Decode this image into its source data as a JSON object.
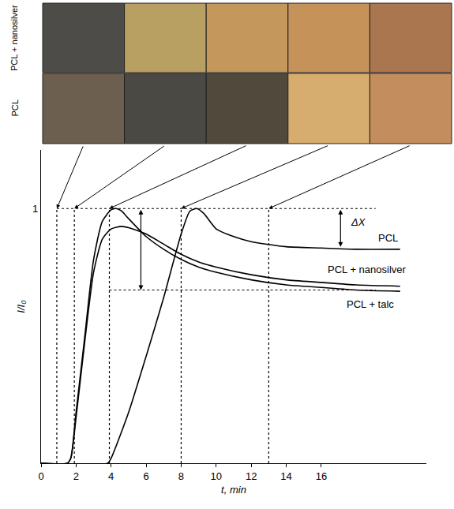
{
  "chart_data": {
    "type": "line",
    "row_labels": [
      "PCL + nanosilver",
      "PCL"
    ],
    "x_label": "t, min",
    "y_label": "I/I₀",
    "xlim": [
      0,
      22
    ],
    "ylim": [
      0,
      1.23
    ],
    "xticks": [
      0,
      2,
      4,
      6,
      8,
      10,
      12,
      14,
      16
    ],
    "yticks": [
      1
    ],
    "grid": false,
    "marked_times": [
      0.9,
      1.9,
      3.9,
      8,
      13
    ],
    "reference_levels": [
      {
        "y": 1,
        "from": 0.9,
        "to": 19.1
      },
      {
        "y": 0.68,
        "from": 3.9,
        "to": 19.1
      }
    ],
    "delta_x": {
      "label": "ΔX",
      "t": 17.1,
      "from": 1,
      "to": 0.85
    },
    "span_arrow": {
      "t": 5.7,
      "from": 1,
      "to": 0.68
    },
    "series": [
      {
        "name": "PCL",
        "color": "#000000",
        "x": [
          0,
          3.8,
          4,
          5,
          6,
          7,
          8,
          8.5,
          8.9,
          9.3,
          10,
          11,
          12,
          14,
          16,
          18,
          20.5
        ],
        "values": [
          0,
          0,
          0.02,
          0.2,
          0.42,
          0.65,
          0.9,
          0.99,
          1.0,
          0.98,
          0.92,
          0.89,
          0.87,
          0.85,
          0.845,
          0.84,
          0.84
        ]
      },
      {
        "name": "PCL + nanosilver",
        "color": "#000000",
        "x": [
          0,
          1.5,
          1.7,
          2,
          2.5,
          3,
          3.5,
          4,
          4.6,
          5,
          6,
          7,
          8,
          9,
          10,
          12,
          14,
          16,
          18,
          20.5
        ],
        "values": [
          0,
          0,
          0.02,
          0.18,
          0.48,
          0.75,
          0.88,
          0.92,
          0.93,
          0.925,
          0.9,
          0.86,
          0.82,
          0.79,
          0.77,
          0.74,
          0.72,
          0.71,
          0.7,
          0.695
        ]
      },
      {
        "name": "PCL + talc",
        "color": "#000000",
        "x": [
          0,
          1.5,
          1.7,
          2,
          2.5,
          3,
          3.5,
          4,
          4.3,
          4.6,
          5,
          6,
          7,
          8,
          9,
          10,
          12,
          14,
          16,
          18,
          20.5
        ],
        "values": [
          0,
          0,
          0.02,
          0.2,
          0.5,
          0.8,
          0.95,
          0.995,
          1.0,
          0.99,
          0.96,
          0.89,
          0.84,
          0.8,
          0.77,
          0.75,
          0.72,
          0.7,
          0.69,
          0.68,
          0.675
        ]
      }
    ]
  }
}
